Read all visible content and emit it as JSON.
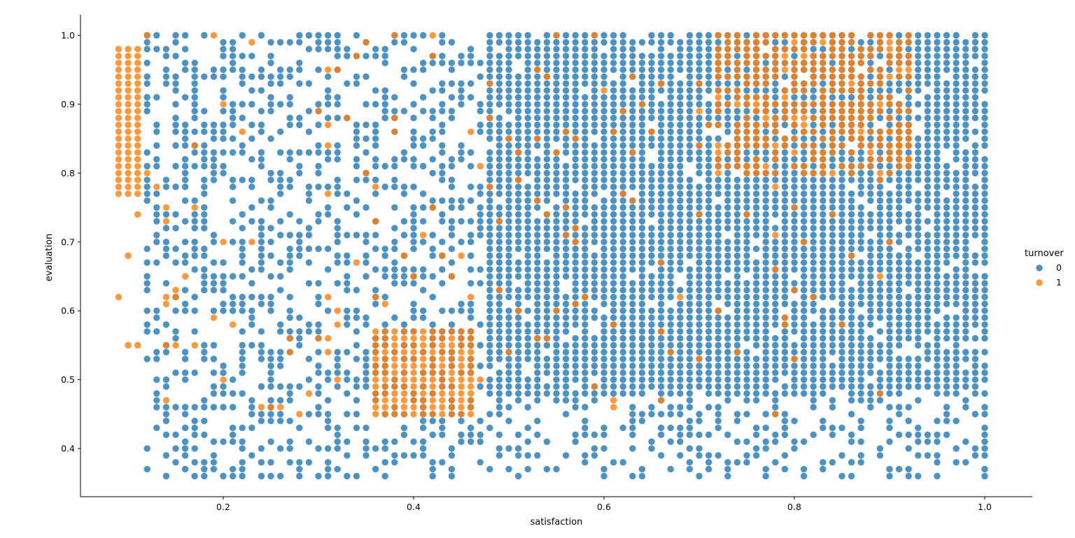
{
  "chart_data": {
    "type": "scatter",
    "xlabel": "satisfaction",
    "ylabel": "evaluation",
    "xlim": [
      0.05,
      1.05
    ],
    "ylim": [
      0.33,
      1.03
    ],
    "xticks": [
      0.2,
      0.4,
      0.6,
      0.8,
      1.0
    ],
    "xtick_labels": [
      "0.2",
      "0.4",
      "0.6",
      "0.8",
      "1.0"
    ],
    "yticks": [
      0.4,
      0.5,
      0.6,
      0.7,
      0.8,
      0.9,
      1.0
    ],
    "ytick_labels": [
      "0.4",
      "0.5",
      "0.6",
      "0.7",
      "0.8",
      "0.9",
      "1.0"
    ],
    "grid": false,
    "legend": {
      "title": "turnover",
      "placement": "right",
      "entries": [
        {
          "label": "0",
          "color": "#1f77b4"
        },
        {
          "label": "1",
          "color": "#ff7f0e"
        }
      ]
    },
    "series": [
      {
        "name": "0",
        "color": "#1f77b4",
        "regions": [
          {
            "x_range": [
              0.48,
              1.0
            ],
            "y_range": [
              0.48,
              1.0
            ],
            "density": 0.93
          },
          {
            "x_range": [
              0.48,
              1.0
            ],
            "y_range": [
              0.36,
              0.47
            ],
            "density": 0.35
          },
          {
            "x_range": [
              0.12,
              0.47
            ],
            "y_range": [
              0.36,
              1.0
            ],
            "density": 0.42
          }
        ]
      },
      {
        "name": "1",
        "color": "#ff7f0e",
        "regions": [
          {
            "x_range": [
              0.09,
              0.11
            ],
            "y_range": [
              0.77,
              0.98
            ],
            "density": 1.0
          },
          {
            "x_range": [
              0.36,
              0.46
            ],
            "y_range": [
              0.45,
              0.57
            ],
            "density": 1.0
          },
          {
            "x_range": [
              0.72,
              0.92
            ],
            "y_range": [
              0.8,
              1.0
            ],
            "density": 0.72
          }
        ],
        "points": [
          [
            0.09,
            0.62
          ],
          [
            0.1,
            0.68
          ],
          [
            0.1,
            0.55
          ],
          [
            0.11,
            0.55
          ],
          [
            0.11,
            0.74
          ],
          [
            0.12,
            1.0
          ],
          [
            0.12,
            0.8
          ],
          [
            0.13,
            0.78
          ],
          [
            0.14,
            0.75
          ],
          [
            0.14,
            0.73
          ],
          [
            0.14,
            0.62
          ],
          [
            0.14,
            0.61
          ],
          [
            0.14,
            0.55
          ],
          [
            0.14,
            0.47
          ],
          [
            0.15,
            0.63
          ],
          [
            0.15,
            0.62
          ],
          [
            0.15,
            0.55
          ],
          [
            0.16,
            0.65
          ],
          [
            0.17,
            0.84
          ],
          [
            0.17,
            0.75
          ],
          [
            0.17,
            0.55
          ],
          [
            0.19,
            1.0
          ],
          [
            0.19,
            0.59
          ],
          [
            0.2,
            0.9
          ],
          [
            0.2,
            0.7
          ],
          [
            0.2,
            0.5
          ],
          [
            0.21,
            0.58
          ],
          [
            0.22,
            0.86
          ],
          [
            0.23,
            0.99
          ],
          [
            0.23,
            0.7
          ],
          [
            0.24,
            0.46
          ],
          [
            0.25,
            0.46
          ],
          [
            0.26,
            0.46
          ],
          [
            0.27,
            0.56
          ],
          [
            0.27,
            0.54
          ],
          [
            0.28,
            0.45
          ],
          [
            0.29,
            0.48
          ],
          [
            0.3,
            0.89
          ],
          [
            0.3,
            0.56
          ],
          [
            0.31,
            0.95
          ],
          [
            0.31,
            0.87
          ],
          [
            0.31,
            0.84
          ],
          [
            0.31,
            0.77
          ],
          [
            0.31,
            0.62
          ],
          [
            0.31,
            0.56
          ],
          [
            0.31,
            0.54
          ],
          [
            0.32,
            0.95
          ],
          [
            0.32,
            0.6
          ],
          [
            0.32,
            0.58
          ],
          [
            0.32,
            0.5
          ],
          [
            0.33,
            0.88
          ],
          [
            0.34,
            0.97
          ],
          [
            0.34,
            0.67
          ],
          [
            0.35,
            0.99
          ],
          [
            0.35,
            0.8
          ],
          [
            0.36,
            0.78
          ],
          [
            0.36,
            0.73
          ],
          [
            0.36,
            0.62
          ],
          [
            0.37,
            0.61
          ],
          [
            0.38,
            1.0
          ],
          [
            0.38,
            0.88
          ],
          [
            0.38,
            0.86
          ],
          [
            0.39,
            0.68
          ],
          [
            0.4,
            0.65
          ],
          [
            0.41,
            0.71
          ],
          [
            0.42,
            1.0
          ],
          [
            0.42,
            0.97
          ],
          [
            0.42,
            0.75
          ],
          [
            0.43,
            0.68
          ],
          [
            0.44,
            0.65
          ],
          [
            0.45,
            0.68
          ],
          [
            0.46,
            0.86
          ],
          [
            0.46,
            0.62
          ],
          [
            0.47,
            0.81
          ],
          [
            0.47,
            0.5
          ],
          [
            0.48,
            0.93
          ],
          [
            0.48,
            0.88
          ],
          [
            0.48,
            0.78
          ],
          [
            0.49,
            0.73
          ],
          [
            0.49,
            0.63
          ],
          [
            0.5,
            0.85
          ],
          [
            0.5,
            0.54
          ],
          [
            0.51,
            0.83
          ],
          [
            0.51,
            0.79
          ],
          [
            0.51,
            0.6
          ],
          [
            0.53,
            0.95
          ],
          [
            0.53,
            0.85
          ],
          [
            0.53,
            0.76
          ],
          [
            0.53,
            0.56
          ],
          [
            0.54,
            0.94
          ],
          [
            0.54,
            0.74
          ],
          [
            0.54,
            0.56
          ],
          [
            0.55,
            1.0
          ],
          [
            0.55,
            0.83
          ],
          [
            0.55,
            0.6
          ],
          [
            0.56,
            0.86
          ],
          [
            0.56,
            0.75
          ],
          [
            0.56,
            0.71
          ],
          [
            0.57,
            0.85
          ],
          [
            0.57,
            0.72
          ],
          [
            0.57,
            0.7
          ],
          [
            0.57,
            0.61
          ],
          [
            0.58,
            0.62
          ],
          [
            0.59,
            1.0
          ],
          [
            0.59,
            0.49
          ],
          [
            0.6,
            0.92
          ],
          [
            0.61,
            0.86
          ],
          [
            0.61,
            0.58
          ],
          [
            0.61,
            0.47
          ],
          [
            0.61,
            0.46
          ],
          [
            0.62,
            0.89
          ],
          [
            0.62,
            0.77
          ],
          [
            0.63,
            0.94
          ],
          [
            0.63,
            0.83
          ],
          [
            0.63,
            0.76
          ],
          [
            0.64,
            0.9
          ],
          [
            0.65,
            0.86
          ],
          [
            0.66,
            0.93
          ],
          [
            0.66,
            0.67
          ],
          [
            0.66,
            0.57
          ],
          [
            0.66,
            0.47
          ],
          [
            0.67,
            0.54
          ],
          [
            0.68,
            0.62
          ],
          [
            0.7,
            0.93
          ],
          [
            0.7,
            0.89
          ],
          [
            0.7,
            0.84
          ],
          [
            0.7,
            0.74
          ],
          [
            0.7,
            0.53
          ],
          [
            0.71,
            0.87
          ],
          [
            0.72,
            0.6
          ],
          [
            0.74,
            0.54
          ],
          [
            0.75,
            0.81
          ],
          [
            0.75,
            0.74
          ],
          [
            0.78,
            0.78
          ],
          [
            0.78,
            0.71
          ],
          [
            0.78,
            0.66
          ],
          [
            0.78,
            0.45
          ],
          [
            0.79,
            0.59
          ],
          [
            0.79,
            0.58
          ],
          [
            0.8,
            0.75
          ],
          [
            0.8,
            0.63
          ],
          [
            0.8,
            0.53
          ],
          [
            0.81,
            0.7
          ],
          [
            0.82,
            0.62
          ],
          [
            0.84,
            0.74
          ],
          [
            0.85,
            0.58
          ],
          [
            0.86,
            0.68
          ],
          [
            0.89,
            0.79
          ],
          [
            0.89,
            0.65
          ],
          [
            0.89,
            0.48
          ],
          [
            0.9,
            0.86
          ],
          [
            0.9,
            0.7
          ],
          [
            0.91,
            0.84
          ],
          [
            0.92,
            0.82
          ]
        ]
      }
    ]
  }
}
